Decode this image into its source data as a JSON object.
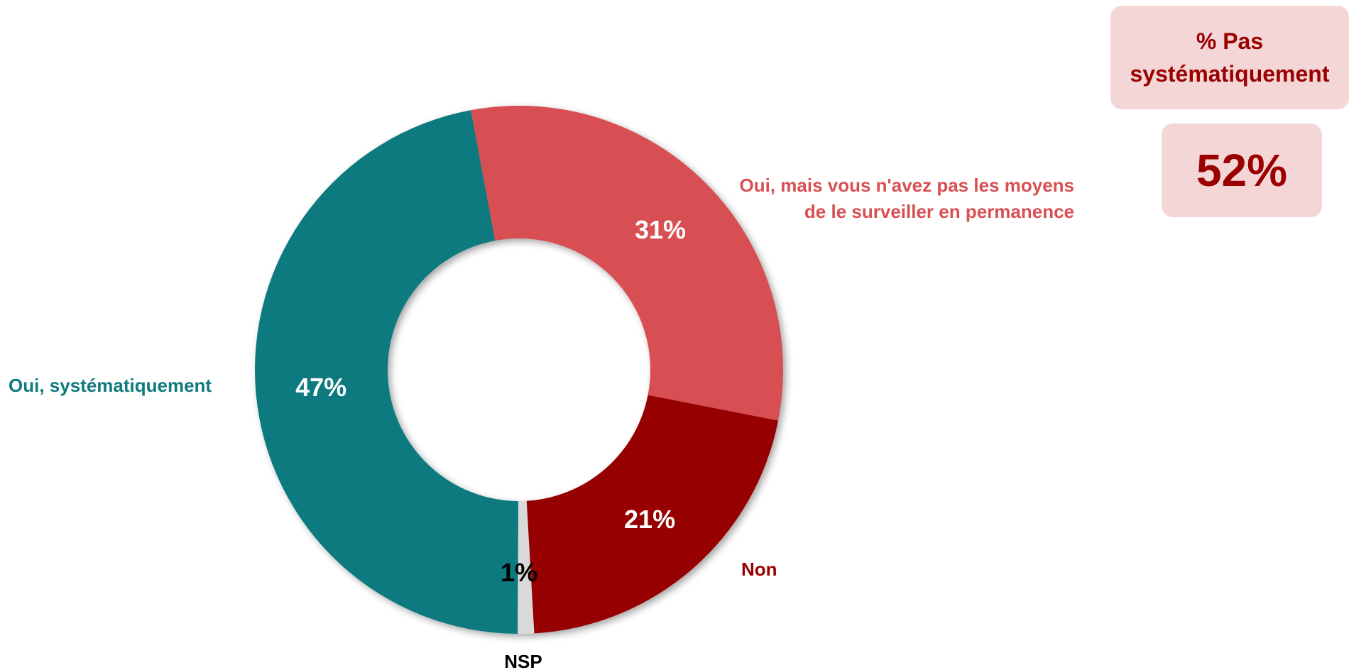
{
  "kpi": {
    "title": "% Pas systématiquement",
    "value": "52%"
  },
  "chart_data": {
    "type": "pie",
    "donut": true,
    "slices": [
      {
        "category": "Oui, mais vous n'avez pas les moyens de le surveiller en permanence",
        "value": 31,
        "label": "31%",
        "color": "#d75053"
      },
      {
        "category": "Non",
        "value": 21,
        "label": "21%",
        "color": "#970000"
      },
      {
        "category": "NSP",
        "value": 1,
        "label": "1%",
        "color": "#d9d9d9"
      },
      {
        "category": "Oui, systématiquement",
        "value": 47,
        "label": "47%",
        "color": "#107a80"
      }
    ],
    "legend": "none"
  }
}
